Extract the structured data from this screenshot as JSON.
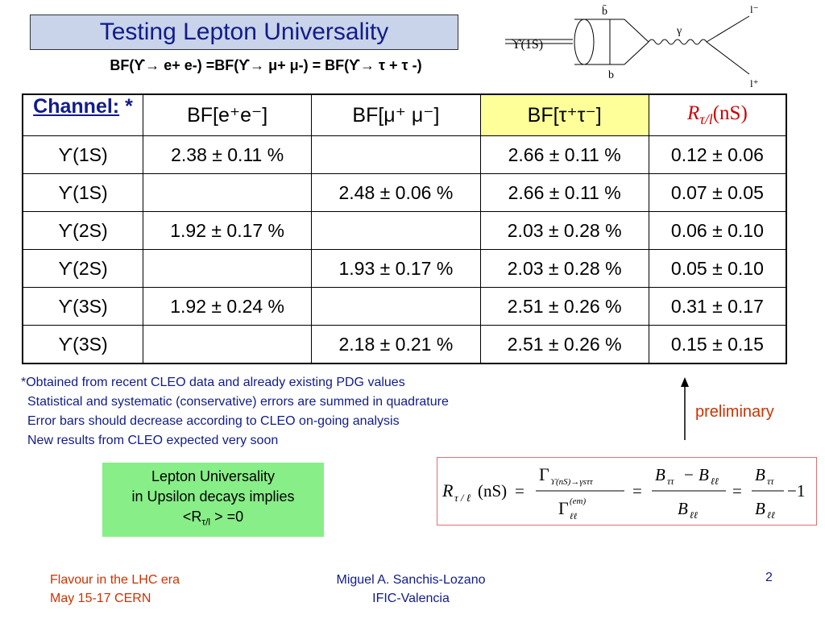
{
  "title": "Testing Lepton Universality",
  "subtitle": "BF(ϒ→ e+ e-) =BF(ϒ→ μ+ μ-) = BF(ϒ→ τ + τ -)",
  "diagram": {
    "upsilon_label": "ϒ(1S)",
    "bbar_label": "b̄",
    "b_label": "b",
    "gamma_label": "γ",
    "l_top_label": "l⁻",
    "l_bottom_label": "l⁺"
  },
  "table": {
    "channel_header": "Channel:",
    "channel_star": "*",
    "col_ee": "BF[e⁺e⁻]",
    "col_mumu": "BF[μ⁺ μ⁻]",
    "col_tautau": "BF[τ⁺τ⁻]",
    "col_ratio_R": "R",
    "col_ratio_sub": "τ/l",
    "col_ratio_nS": "(nS)",
    "rows": [
      {
        "channel": "ϒ(1S)",
        "ee": "2.38 ± 0.11 %",
        "mumu": "",
        "tautau": "2.66 ± 0.11 %",
        "ratio": "0.12 ± 0.06"
      },
      {
        "channel": "ϒ(1S)",
        "ee": "",
        "mumu": "2.48 ± 0.06 %",
        "tautau": "2.66 ± 0.11 %",
        "ratio": "0.07 ± 0.05"
      },
      {
        "channel": "ϒ(2S)",
        "ee": "1.92 ± 0.17 %",
        "mumu": "",
        "tautau": "2.03 ± 0.28 %",
        "ratio": "0.06 ± 0.10"
      },
      {
        "channel": "ϒ(2S)",
        "ee": "",
        "mumu": "1.93 ± 0.17 %",
        "tautau": "2.03 ± 0.28 %",
        "ratio": "0.05 ± 0.10"
      },
      {
        "channel": "ϒ(3S)",
        "ee": "1.92 ± 0.24 %",
        "mumu": "",
        "tautau": "2.51 ± 0.26 %",
        "ratio": "0.31 ± 0.17"
      },
      {
        "channel": "ϒ(3S)",
        "ee": "",
        "mumu": "2.18 ± 0.21 %",
        "tautau": "2.51 ± 0.26 %",
        "ratio": "0.15 ± 0.15"
      }
    ]
  },
  "notes": [
    "*Obtained from recent CLEO data and already existing PDG values",
    "Statistical and systematic (conservative) errors are summed in quadrature",
    "Error bars should decrease according to CLEO on-going analysis",
    "New results from CLEO expected very soon"
  ],
  "preliminary": "preliminary",
  "green_box": {
    "line1": "Lepton Universality",
    "line2": "in Upsilon decays implies",
    "line3_prefix": "<R",
    "line3_sub": "τ/l",
    "line3_suffix": " > =0"
  },
  "formula": {
    "R": "R",
    "R_sub": "τ / ℓ",
    "nS": "(nS)",
    "eq": "=",
    "gamma": "Γ",
    "num_sub": "ϒ(nS)→γsττ",
    "den_sup": "(em)",
    "den_sub": "ℓℓ",
    "B": "B",
    "sub_tt": "ττ",
    "sub_ll": "ℓℓ",
    "minus": "−",
    "minus_one": "−1"
  },
  "footer": {
    "left_line1": "Flavour in the LHC era",
    "left_line2": "May 15-17 CERN",
    "mid_line1": "Miguel A. Sanchis-Lozano",
    "mid_line2": "IFIC-Valencia",
    "page": "2"
  }
}
